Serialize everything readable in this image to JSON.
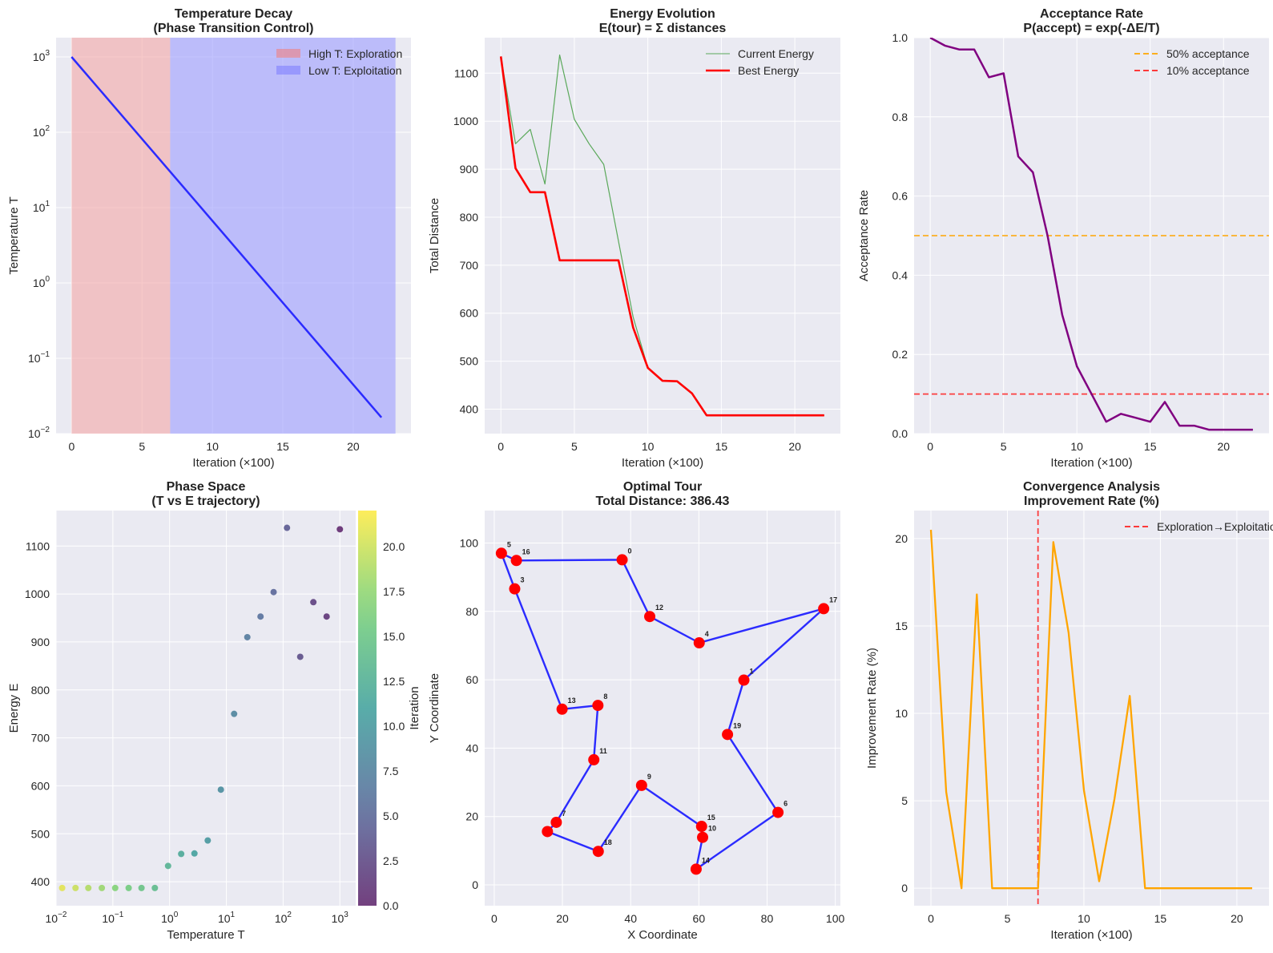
{
  "chart_data": [
    {
      "id": "p1",
      "type": "line",
      "title": "Temperature Decay\n(Phase Transition Control)",
      "xlabel": "Iteration (×100)",
      "ylabel": "Temperature T",
      "yscale": "log",
      "xlim": [
        -1.1,
        24.1
      ],
      "ylim": [
        0.01,
        1800
      ],
      "xticks": [
        0,
        5,
        10,
        15,
        20
      ],
      "yticks": [
        {
          "v": 0.01,
          "base": "10",
          "exp": "−2"
        },
        {
          "v": 0.1,
          "base": "10",
          "exp": "−1"
        },
        {
          "v": 1,
          "base": "10",
          "exp": "0"
        },
        {
          "v": 10,
          "base": "10",
          "exp": "1"
        },
        {
          "v": 100,
          "base": "10",
          "exp": "2"
        },
        {
          "v": 1000,
          "base": "10",
          "exp": "3"
        }
      ],
      "grid": true,
      "legend_position": "top-right",
      "legend": [
        {
          "label": "High T: Exploration",
          "color": "#f08080",
          "kind": "patch"
        },
        {
          "label": "Low T: Exploitation",
          "color": "#8080ff",
          "kind": "patch"
        }
      ],
      "spans": [
        {
          "x0": 0,
          "x1": 7,
          "color": "#f4a6a6",
          "opacity": 0.6
        },
        {
          "x0": 7,
          "x1": 23,
          "color": "#9d9dff",
          "opacity": 0.6
        }
      ],
      "series": [
        {
          "color": "#2b2bff",
          "width": 2.5,
          "x": [
            0,
            22
          ],
          "y": [
            1000,
            0.0164
          ]
        }
      ]
    },
    {
      "id": "p2",
      "type": "line",
      "title": "Energy Evolution\nE(tour) = Σ distances",
      "xlabel": "Iteration (×100)",
      "ylabel": "Total Distance",
      "xlim": [
        -1.1,
        23.1
      ],
      "ylim": [
        349,
        1174
      ],
      "xticks": [
        0,
        5,
        10,
        15,
        20
      ],
      "yticks": [
        400,
        500,
        600,
        700,
        800,
        900,
        1000,
        1100
      ],
      "grid": true,
      "legend_position": "top-right",
      "legend": [
        {
          "label": "Current Energy",
          "color": "#5aa85a",
          "kind": "line",
          "width": 1
        },
        {
          "label": "Best Energy",
          "color": "#ff0000",
          "kind": "line",
          "width": 2.5
        }
      ],
      "series": [
        {
          "name": "Current Energy",
          "color": "#5aa85a",
          "width": 1.2,
          "x": [
            0,
            1,
            2,
            3,
            4,
            5,
            6,
            7,
            8,
            9,
            10,
            11,
            12,
            13,
            14,
            15,
            16,
            17,
            18,
            19,
            20,
            21,
            22
          ],
          "y": [
            1135,
            953,
            983,
            869,
            1138,
            1004,
            953,
            910,
            750,
            592,
            486,
            459,
            458,
            433,
            387,
            387,
            387,
            387,
            387,
            387,
            387,
            387,
            387
          ]
        },
        {
          "name": "Best Energy",
          "color": "#ff0000",
          "width": 2.6,
          "x": [
            0,
            1,
            2,
            3,
            4,
            5,
            6,
            7,
            8,
            9,
            10,
            11,
            12,
            13,
            14,
            15,
            16,
            17,
            18,
            19,
            20,
            21,
            22
          ],
          "y": [
            1135,
            902,
            852,
            852,
            710,
            710,
            710,
            710,
            710,
            570,
            486,
            459,
            458,
            433,
            387,
            387,
            387,
            387,
            387,
            387,
            387,
            387,
            387
          ]
        }
      ]
    },
    {
      "id": "p3",
      "type": "line",
      "title": "Acceptance Rate\nP(accept) = exp(-ΔE/T)",
      "xlabel": "Iteration (×100)",
      "ylabel": "Acceptance Rate",
      "xlim": [
        -1.1,
        23.1
      ],
      "ylim": [
        0,
        1
      ],
      "xticks": [
        0,
        5,
        10,
        15,
        20
      ],
      "yticks": [
        0.0,
        0.2,
        0.4,
        0.6,
        0.8,
        1.0
      ],
      "ytick_labels": [
        "0.0",
        "0.2",
        "0.4",
        "0.6",
        "0.8",
        "1.0"
      ],
      "grid": true,
      "legend_position": "top-right",
      "legend": [
        {
          "label": "50% acceptance",
          "color": "#ffa500",
          "kind": "dash"
        },
        {
          "label": "10% acceptance",
          "color": "#ff2020",
          "kind": "dash"
        }
      ],
      "hlines": [
        {
          "y": 0.5,
          "color": "#ffa500"
        },
        {
          "y": 0.1,
          "color": "#ff2020"
        }
      ],
      "series": [
        {
          "color": "#800080",
          "width": 2.5,
          "x": [
            0,
            1,
            2,
            3,
            4,
            5,
            6,
            7,
            8,
            9,
            10,
            11,
            12,
            13,
            14,
            15,
            16,
            17,
            18,
            19,
            20,
            21,
            22
          ],
          "y": [
            1.0,
            0.98,
            0.97,
            0.97,
            0.9,
            0.91,
            0.7,
            0.66,
            0.5,
            0.3,
            0.17,
            0.1,
            0.03,
            0.05,
            0.04,
            0.03,
            0.08,
            0.02,
            0.02,
            0.01,
            0.01,
            0.01,
            0.01
          ]
        }
      ]
    },
    {
      "id": "p4",
      "type": "scatter",
      "title": "Phase Space\n(T vs E trajectory)",
      "xlabel": "Temperature T",
      "ylabel": "Energy E",
      "xscale": "log",
      "xlim": [
        0.01,
        1900
      ],
      "ylim": [
        350,
        1174
      ],
      "xticks": [
        {
          "v": 0.01,
          "base": "10",
          "exp": "−2"
        },
        {
          "v": 0.1,
          "base": "10",
          "exp": "−1"
        },
        {
          "v": 1,
          "base": "10",
          "exp": "0"
        },
        {
          "v": 10,
          "base": "10",
          "exp": "1"
        },
        {
          "v": 100,
          "base": "10",
          "exp": "2"
        },
        {
          "v": 1000,
          "base": "10",
          "exp": "3"
        }
      ],
      "yticks": [
        400,
        500,
        600,
        700,
        800,
        900,
        1000,
        1100
      ],
      "grid": true,
      "colorbar": {
        "label": "Iteration",
        "min": 0,
        "max": 22,
        "cmap": "viridis",
        "ticks": [
          "0.0",
          "2.5",
          "5.0",
          "7.5",
          "10.0",
          "12.5",
          "15.0",
          "17.5",
          "20.0"
        ]
      },
      "points": {
        "x": [
          1000,
          584,
          341,
          200,
          117,
          68,
          40,
          23.4,
          13.7,
          8.0,
          4.7,
          2.74,
          1.6,
          0.94,
          0.55,
          0.32,
          0.19,
          0.11,
          0.064,
          0.037,
          0.022,
          0.0128,
          0.0075
        ],
        "y": [
          1135,
          953,
          983,
          869,
          1138,
          1004,
          953,
          910,
          750,
          592,
          486,
          459,
          458,
          433,
          387,
          387,
          387,
          387,
          387,
          387,
          387,
          387,
          387
        ],
        "c": [
          0,
          1,
          2,
          3,
          4,
          5,
          6,
          7,
          8,
          9,
          10,
          11,
          12,
          13,
          14,
          15,
          16,
          17,
          18,
          19,
          20,
          21,
          22
        ]
      }
    },
    {
      "id": "p5",
      "type": "line",
      "title": "Optimal Tour\nTotal Distance: 386.43",
      "xlabel": "X Coordinate",
      "ylabel": "Y Coordinate",
      "xlim": [
        -2.8,
        101.5
      ],
      "ylim": [
        -6.1,
        109.5
      ],
      "xticks": [
        0,
        20,
        40,
        60,
        80,
        100
      ],
      "yticks": [
        0,
        20,
        40,
        60,
        80,
        100
      ],
      "grid": true,
      "cities": [
        {
          "id": 0,
          "x": 37.5,
          "y": 95.1
        },
        {
          "id": 1,
          "x": 73.2,
          "y": 59.9
        },
        {
          "id": 3,
          "x": 6.0,
          "y": 86.6
        },
        {
          "id": 4,
          "x": 60.1,
          "y": 70.8
        },
        {
          "id": 5,
          "x": 2.1,
          "y": 97.0
        },
        {
          "id": 6,
          "x": 83.2,
          "y": 21.2
        },
        {
          "id": 7,
          "x": 18.2,
          "y": 18.3
        },
        {
          "id": 8,
          "x": 30.4,
          "y": 52.5
        },
        {
          "id": 9,
          "x": 43.2,
          "y": 29.1
        },
        {
          "id": 10,
          "x": 61.1,
          "y": 13.9
        },
        {
          "id": 11,
          "x": 29.2,
          "y": 36.6
        },
        {
          "id": 12,
          "x": 45.6,
          "y": 78.5
        },
        {
          "id": 13,
          "x": 19.9,
          "y": 51.4
        },
        {
          "id": 14,
          "x": 59.2,
          "y": 4.6
        },
        {
          "id": 15,
          "x": 60.8,
          "y": 17.1
        },
        {
          "id": 16,
          "x": 6.5,
          "y": 94.9
        },
        {
          "id": 17,
          "x": 96.6,
          "y": 80.8
        },
        {
          "id": 18,
          "x": 30.5,
          "y": 9.8
        },
        {
          "id": 19,
          "x": 68.4,
          "y": 44.0
        },
        {
          "id": "",
          "x": 15.6,
          "y": 15.6
        }
      ],
      "tour_order": [
        0,
        12,
        4,
        17,
        1,
        19,
        6,
        14,
        10,
        15,
        9,
        18,
        "",
        7,
        11,
        8,
        13,
        3,
        5,
        16,
        0
      ]
    },
    {
      "id": "p6",
      "type": "line",
      "title": "Convergence Analysis\nImprovement Rate (%)",
      "xlabel": "Iteration (×100)",
      "ylabel": "Improvement Rate (%)",
      "xlim": [
        -1.1,
        22.1
      ],
      "ylim": [
        -1.0,
        21.6
      ],
      "xticks": [
        0,
        5,
        10,
        15,
        20
      ],
      "yticks": [
        0,
        5,
        10,
        15,
        20
      ],
      "grid": true,
      "legend_position": "top-right",
      "legend": [
        {
          "label": "Exploration→Exploitation",
          "color": "#ff2020",
          "kind": "dash"
        }
      ],
      "vlines": [
        {
          "x": 7,
          "color": "#ff2020"
        }
      ],
      "series": [
        {
          "color": "#ffa500",
          "width": 2.3,
          "x": [
            0,
            1,
            2,
            3,
            4,
            5,
            6,
            7,
            8,
            9,
            10,
            11,
            12,
            13,
            14,
            15,
            16,
            17,
            18,
            19,
            20,
            21
          ],
          "y": [
            20.5,
            5.5,
            0,
            16.8,
            0,
            0,
            0,
            0,
            19.8,
            14.6,
            5.6,
            0.4,
            5.1,
            11.0,
            0,
            0,
            0,
            0,
            0,
            0,
            0,
            0
          ]
        }
      ]
    }
  ]
}
